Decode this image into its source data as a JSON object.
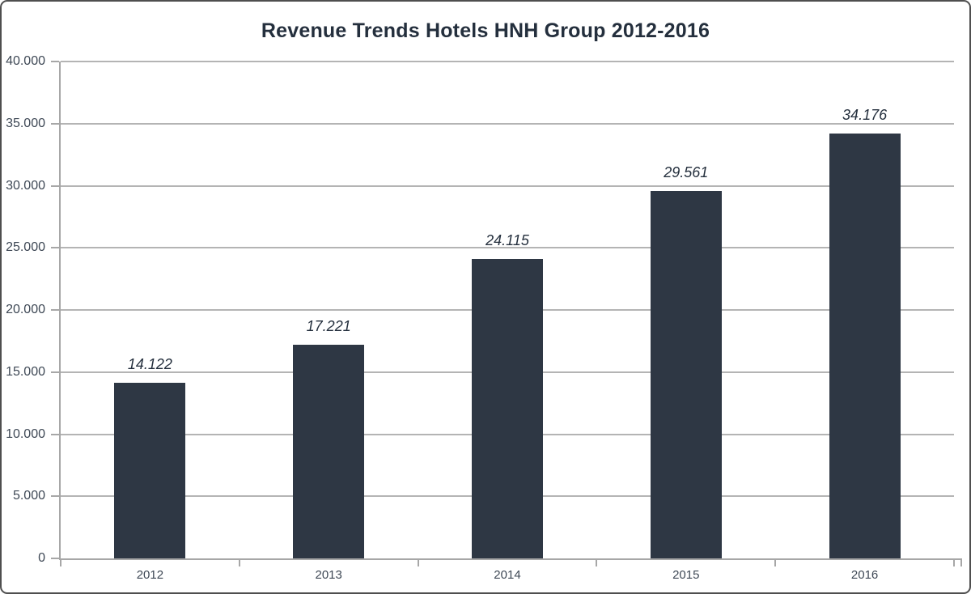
{
  "chart_data": {
    "type": "bar",
    "title": "Revenue Trends Hotels HNH Group 2012-2016",
    "categories": [
      "2012",
      "2013",
      "2014",
      "2015",
      "2016"
    ],
    "values": [
      14122,
      17221,
      24115,
      29561,
      34176
    ],
    "value_labels": [
      "14.122",
      "17.221",
      "24.115",
      "29.561",
      "34.176"
    ],
    "xlabel": "",
    "ylabel": "",
    "ylim": [
      0,
      40000
    ],
    "y_tick_step": 5000,
    "y_ticks": [
      "0",
      "5.000",
      "10.000",
      "15.000",
      "20.000",
      "25.000",
      "30.000",
      "35.000",
      "40.000"
    ],
    "grid": "horizontal",
    "legend": "none",
    "colors": {
      "bar": "#2e3744",
      "axis": "#a7a7a7",
      "title_text": "#242f3d",
      "tick_text": "#3e4855",
      "frame_border": "#4f4f4f"
    }
  }
}
